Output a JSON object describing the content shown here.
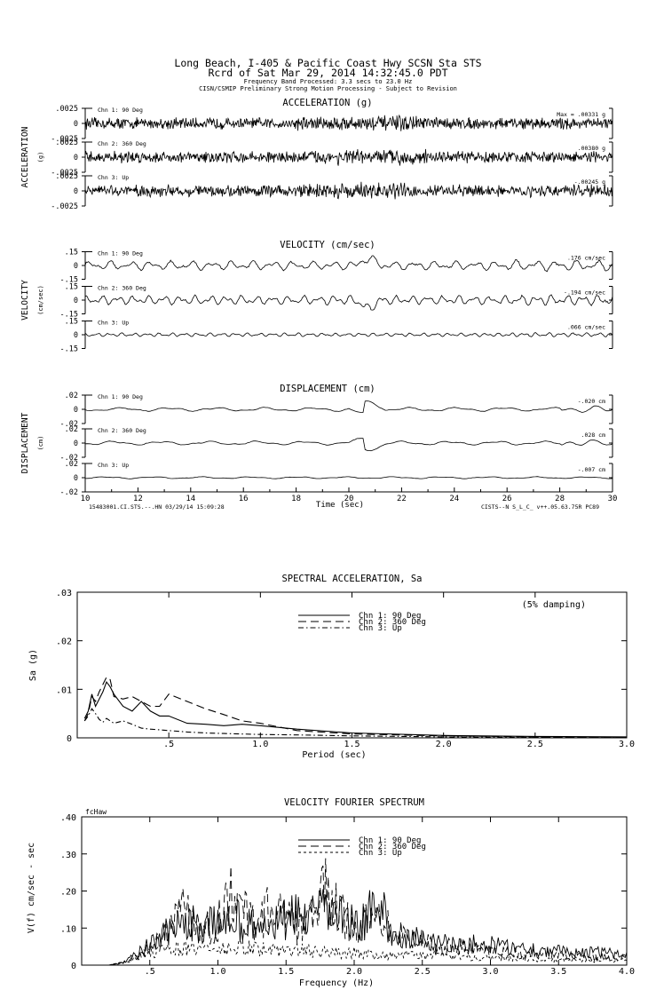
{
  "header": {
    "line1": "Long Beach, I-405 & Pacific Coast Hwy    SCSN Sta STS",
    "line2": "Rcrd of Sat Mar 29, 2014 14:32:45.0 PDT",
    "line3": "Frequency Band Processed: 3.3 secs to 23.0 Hz",
    "line4": "CISN/CSMIP Preliminary Strong Motion Processing - Subject to Revision"
  },
  "chart_data": [
    {
      "type": "line",
      "title": "ACCELERATION (g)",
      "ylabel": "ACCELERATION",
      "yunit": "(g)",
      "xlim": [
        10,
        30
      ],
      "channels": [
        {
          "name": "Chn 1: 90 Deg",
          "ylim": [
            -0.0025,
            0.0025
          ],
          "yticks": [
            ".0025",
            "0",
            "-.0025"
          ],
          "peak_text": "Max =   .00331   g",
          "peak": 0.00331
        },
        {
          "name": "Chn 2: 360 Deg",
          "ylim": [
            -0.0025,
            0.0025
          ],
          "yticks": [
            ".0025",
            "0",
            "-.0025"
          ],
          "peak_text": ".00380   g",
          "peak": 0.0038
        },
        {
          "name": "Chn 3: Up",
          "ylim": [
            -0.0025,
            0.0025
          ],
          "yticks": [
            ".0025",
            "0",
            "-.0025"
          ],
          "peak_text": "-.00245   g",
          "peak": -0.00245
        }
      ]
    },
    {
      "type": "line",
      "title": "VELOCITY (cm/sec)",
      "ylabel": "VELOCITY",
      "yunit": "(cm/sec)",
      "xlim": [
        10,
        30
      ],
      "channels": [
        {
          "name": "Chn 1: 90 Deg",
          "ylim": [
            -0.15,
            0.15
          ],
          "yticks": [
            ".15",
            "0",
            "-.15"
          ],
          "peak_text": ".176   cm/sec",
          "peak": 0.176
        },
        {
          "name": "Chn 2: 360 Deg",
          "ylim": [
            -0.15,
            0.15
          ],
          "yticks": [
            ".15",
            "0",
            "-.15"
          ],
          "peak_text": "-.194   cm/sec",
          "peak": -0.194
        },
        {
          "name": "Chn 3: Up",
          "ylim": [
            -0.15,
            0.15
          ],
          "yticks": [
            ".15",
            "0",
            "-.15"
          ],
          "peak_text": ".066   cm/sec",
          "peak": 0.066
        }
      ]
    },
    {
      "type": "line",
      "title": "DISPLACEMENT (cm)",
      "ylabel": "DISPLACEMENT",
      "yunit": "(cm)",
      "xlabel": "Time (sec)",
      "xlim": [
        10,
        30
      ],
      "xticks": [
        "10",
        "12",
        "14",
        "16",
        "18",
        "20",
        "22",
        "24",
        "26",
        "28",
        "30"
      ],
      "footer_left": "15483001.CI.STS.--.HN 03/29/14 15:09:28",
      "footer_right": "CISTS--N  S_L_C_  v++.05.63.75R PC89",
      "channels": [
        {
          "name": "Chn 1: 90 Deg",
          "ylim": [
            -0.02,
            0.02
          ],
          "yticks": [
            ".02",
            "0",
            "-.02"
          ],
          "peak_text": "-.020   cm",
          "peak": -0.02
        },
        {
          "name": "Chn 2: 360 Deg",
          "ylim": [
            -0.02,
            0.02
          ],
          "yticks": [
            ".02",
            "0",
            "-.02"
          ],
          "peak_text": ".028   cm",
          "peak": 0.028
        },
        {
          "name": "Chn 3: Up",
          "ylim": [
            -0.02,
            0.02
          ],
          "yticks": [
            ".02",
            "0",
            "-.02"
          ],
          "peak_text": "-.007   cm",
          "peak": -0.007
        }
      ]
    },
    {
      "type": "line",
      "title": "SPECTRAL ACCELERATION, Sa",
      "xlabel": "Period (sec)",
      "ylabel": "Sa (g)",
      "note": "(5% damping)",
      "xlim": [
        0,
        3.0
      ],
      "ylim": [
        0,
        0.03
      ],
      "xticks": [
        {
          "v": 0.5,
          "t": ".5"
        },
        {
          "v": 1.0,
          "t": "1.0"
        },
        {
          "v": 1.5,
          "t": "1.5"
        },
        {
          "v": 2.0,
          "t": "2.0"
        },
        {
          "v": 2.5,
          "t": "2.5"
        },
        {
          "v": 3.0,
          "t": "3.0"
        }
      ],
      "yticks": [
        {
          "v": 0,
          "t": "0"
        },
        {
          "v": 0.01,
          "t": ".01"
        },
        {
          "v": 0.02,
          "t": ".02"
        },
        {
          "v": 0.03,
          "t": ".03"
        }
      ],
      "series": [
        {
          "name": "Chn 1: 90 Deg",
          "dash": "",
          "x": [
            0.04,
            0.06,
            0.08,
            0.1,
            0.12,
            0.14,
            0.16,
            0.18,
            0.2,
            0.25,
            0.3,
            0.35,
            0.4,
            0.45,
            0.5,
            0.6,
            0.7,
            0.8,
            0.9,
            1.0,
            1.2,
            1.5,
            2.0,
            2.5,
            3.0
          ],
          "values": [
            0.004,
            0.0055,
            0.009,
            0.0065,
            0.008,
            0.0095,
            0.0115,
            0.0105,
            0.009,
            0.0065,
            0.0055,
            0.0075,
            0.0055,
            0.0045,
            0.0045,
            0.003,
            0.0028,
            0.0025,
            0.0028,
            0.0025,
            0.0018,
            0.001,
            0.0005,
            0.0003,
            0.0002
          ]
        },
        {
          "name": "Chn 2: 360 Deg",
          "dash": "9,5",
          "x": [
            0.04,
            0.06,
            0.08,
            0.1,
            0.12,
            0.14,
            0.16,
            0.18,
            0.2,
            0.25,
            0.3,
            0.35,
            0.4,
            0.45,
            0.5,
            0.6,
            0.7,
            0.8,
            0.9,
            1.0,
            1.2,
            1.5,
            2.0,
            2.5,
            3.0
          ],
          "values": [
            0.0035,
            0.005,
            0.0085,
            0.0075,
            0.0095,
            0.011,
            0.0125,
            0.012,
            0.0085,
            0.008,
            0.0085,
            0.0075,
            0.0065,
            0.0065,
            0.009,
            0.0075,
            0.006,
            0.0048,
            0.0035,
            0.003,
            0.0015,
            0.0008,
            0.0004,
            0.0002,
            0.0001
          ]
        },
        {
          "name": "Chn 3: Up",
          "dash": "6,3,1.5,3",
          "x": [
            0.04,
            0.06,
            0.08,
            0.1,
            0.12,
            0.14,
            0.16,
            0.18,
            0.2,
            0.25,
            0.3,
            0.35,
            0.4,
            0.5,
            0.6,
            0.7,
            0.8,
            1.0,
            1.2,
            1.5,
            2.0,
            2.5,
            3.0
          ],
          "values": [
            0.0035,
            0.0045,
            0.006,
            0.005,
            0.0038,
            0.0032,
            0.004,
            0.0035,
            0.003,
            0.0035,
            0.0028,
            0.002,
            0.0018,
            0.0015,
            0.0012,
            0.001,
            0.0009,
            0.0007,
            0.0006,
            0.0004,
            0.0002,
            0.0001,
            0.0001
          ]
        }
      ]
    },
    {
      "type": "line",
      "title": "VELOCITY FOURIER SPECTRUM",
      "xlabel": "Frequency (Hz)",
      "ylabel": "V(f)   cm/sec - sec",
      "corner_label": "fcHaw",
      "xlim": [
        0,
        4.0
      ],
      "ylim": [
        0,
        0.4
      ],
      "xticks": [
        {
          "v": 0.5,
          "t": ".5"
        },
        {
          "v": 1.0,
          "t": "1.0"
        },
        {
          "v": 1.5,
          "t": "1.5"
        },
        {
          "v": 2.0,
          "t": "2.0"
        },
        {
          "v": 2.5,
          "t": "2.5"
        },
        {
          "v": 3.0,
          "t": "3.0"
        },
        {
          "v": 3.5,
          "t": "3.5"
        },
        {
          "v": 4.0,
          "t": "4.0"
        }
      ],
      "yticks": [
        {
          "v": 0,
          "t": "0"
        },
        {
          "v": 0.1,
          "t": ".10"
        },
        {
          "v": 0.2,
          "t": ".20"
        },
        {
          "v": 0.3,
          "t": ".30"
        },
        {
          "v": 0.4,
          "t": ".40"
        }
      ],
      "series": [
        {
          "name": "Chn 1: 90 Deg",
          "dash": "",
          "x": [
            0.0,
            0.2,
            0.3,
            0.4,
            0.5,
            0.6,
            0.7,
            0.8,
            0.9,
            1.0,
            1.1,
            1.2,
            1.3,
            1.4,
            1.5,
            1.6,
            1.7,
            1.8,
            1.9,
            2.0,
            2.1,
            2.2,
            2.3,
            2.4,
            2.5,
            2.6,
            2.7,
            2.8,
            2.9,
            3.0,
            3.2,
            3.4,
            3.6,
            3.8,
            4.0
          ],
          "values": [
            0.0,
            0.0,
            0.01,
            0.04,
            0.08,
            0.12,
            0.15,
            0.16,
            0.15,
            0.17,
            0.2,
            0.16,
            0.14,
            0.16,
            0.18,
            0.2,
            0.19,
            0.22,
            0.2,
            0.16,
            0.2,
            0.22,
            0.12,
            0.1,
            0.11,
            0.08,
            0.1,
            0.07,
            0.09,
            0.08,
            0.07,
            0.06,
            0.05,
            0.05,
            0.04
          ]
        },
        {
          "name": "Chn 2: 360 Deg",
          "dash": "9,5",
          "x": [
            0.0,
            0.2,
            0.3,
            0.4,
            0.5,
            0.6,
            0.7,
            0.75,
            0.8,
            0.9,
            1.0,
            1.1,
            1.2,
            1.3,
            1.4,
            1.5,
            1.6,
            1.7,
            1.8,
            1.85,
            1.9,
            2.0,
            2.1,
            2.2,
            2.3,
            2.4,
            2.5,
            2.6,
            2.8,
            3.0,
            3.2,
            3.4,
            3.6,
            3.8,
            4.0
          ],
          "values": [
            0.0,
            0.0,
            0.01,
            0.03,
            0.07,
            0.1,
            0.2,
            0.3,
            0.19,
            0.15,
            0.17,
            0.32,
            0.2,
            0.18,
            0.24,
            0.18,
            0.16,
            0.19,
            0.31,
            0.24,
            0.2,
            0.16,
            0.17,
            0.2,
            0.14,
            0.12,
            0.1,
            0.08,
            0.07,
            0.06,
            0.05,
            0.04,
            0.04,
            0.03,
            0.03
          ]
        },
        {
          "name": "Chn 3: Up",
          "dash": "3,3",
          "x": [
            0.0,
            0.2,
            0.3,
            0.4,
            0.5,
            0.6,
            0.7,
            0.8,
            0.9,
            1.0,
            1.2,
            1.4,
            1.6,
            1.8,
            2.0,
            2.2,
            2.4,
            2.6,
            2.8,
            3.0,
            3.2,
            3.4,
            3.6,
            3.8,
            4.0
          ],
          "values": [
            0.0,
            0.0,
            0.01,
            0.03,
            0.05,
            0.06,
            0.07,
            0.06,
            0.07,
            0.06,
            0.07,
            0.06,
            0.06,
            0.05,
            0.05,
            0.04,
            0.04,
            0.04,
            0.03,
            0.03,
            0.03,
            0.02,
            0.02,
            0.02,
            0.02
          ]
        }
      ]
    }
  ]
}
